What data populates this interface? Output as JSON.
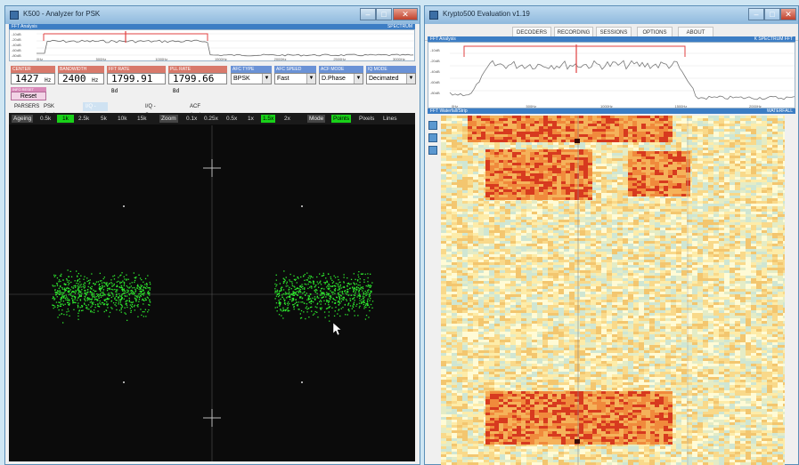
{
  "left_window": {
    "title": "K500 - Analyzer for PSK",
    "fft_header": "FFT Analysis",
    "fft_header_right": "SPECTRUM",
    "db_ticks": [
      "-10dB",
      "-20dB",
      "-40dB",
      "-60dB",
      "-80dB"
    ],
    "freq_ticks": [
      "0Hz",
      "500Hz",
      "1000Hz",
      "1500Hz",
      "2000Hz",
      "2500Hz",
      "3000Hz"
    ],
    "params": {
      "center": {
        "label": "CENTER",
        "value": "1427",
        "unit": "Hz"
      },
      "bandwidth": {
        "label": "BANDWIDTH",
        "value": "2400",
        "unit": "Hz"
      },
      "fft_rate": {
        "label": "FFT RATE",
        "value": "1799.91",
        "unit": "Bd"
      },
      "pll_rate": {
        "label": "PLL RATE",
        "value": "1799.66",
        "unit": "Bd"
      },
      "afc_type": {
        "label": "AFC TYPE",
        "value": "BPSK"
      },
      "afc_speed": {
        "label": "AFC SPEED",
        "value": "Fast"
      },
      "acf_mode": {
        "label": "ACF MODE",
        "value": "D.Phase"
      },
      "iq_mode": {
        "label": "IQ MODE",
        "value": "Decimated"
      }
    },
    "reset_label": "Reset",
    "reset_header": "INFO RESET",
    "tabs": [
      {
        "label": "PARSERS"
      },
      {
        "label": "PSK Analyzer"
      },
      {
        "label": "I/Q - Phase plane"
      },
      {
        "label": "I/Q - Scope"
      },
      {
        "label": "ACF Analyzer"
      }
    ],
    "controls": {
      "ageing_label": "Ageing",
      "ageing_options": [
        "0.5k",
        "1k",
        "2.5k",
        "5k",
        "10k",
        "15k"
      ],
      "zoom_label": "Zoom",
      "zoom_options": [
        "0.1x",
        "0.25x",
        "0.5x",
        "1x",
        "1.5x",
        "2x"
      ],
      "mode_label": "Mode",
      "mode_options": [
        "Points",
        "Pixels",
        "Lines"
      ]
    }
  },
  "right_window": {
    "title": "Krypto500 Evaluation v1.19",
    "toolbar": [
      "DECODERS",
      "RECORDING",
      "SESSIONS",
      "OPTIONS",
      "ABOUT"
    ],
    "fft_header": "FFT Analysis",
    "fft_header_right": "K SPECTRUM FFT",
    "db_ticks": [
      "-10dB",
      "-20dB",
      "-40dB",
      "-60dB",
      "-80dB"
    ],
    "freq_ticks": [
      "0Hz",
      "500Hz",
      "1000Hz",
      "1500Hz",
      "2000Hz"
    ],
    "waterfall_header": "FFT Waterfall/Strip",
    "waterfall_header_right": "WATERFALL"
  },
  "colors": {
    "accent_green": "#19d119",
    "constellation": "#2ee82e",
    "title_bar": "#a7cbe8",
    "close_button": "#c0412c",
    "panel_blue": "#3c7dc4",
    "marker_red": "#e04040"
  }
}
